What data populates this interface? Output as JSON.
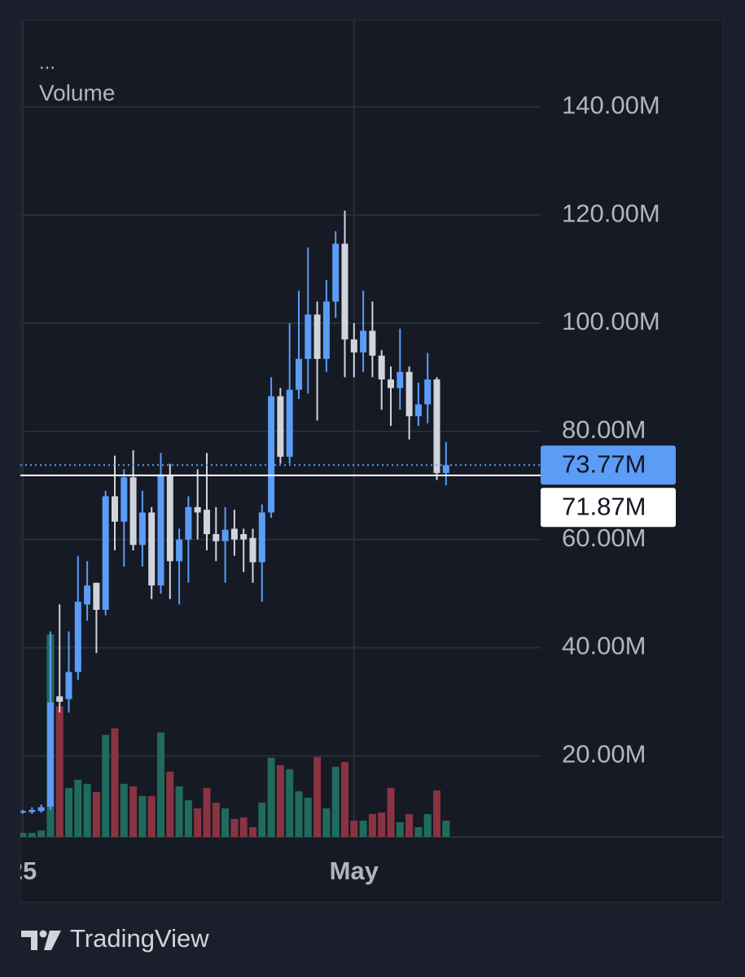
{
  "chart_data": {
    "type": "candlestick",
    "menu": "...",
    "indicator": "Volume",
    "brand": "TradingView",
    "categories": [
      "25",
      null,
      null,
      null,
      null,
      null,
      null,
      null,
      null,
      null,
      null,
      null,
      null,
      null,
      null,
      null,
      null,
      null,
      null,
      null,
      null,
      null,
      null,
      null,
      null,
      null,
      null,
      null,
      null,
      null,
      null,
      null,
      null,
      null,
      null,
      null,
      "May",
      null,
      null,
      null,
      null,
      null,
      null,
      null,
      null,
      null,
      null
    ],
    "open": [
      9.5,
      9.6,
      9.8,
      10.6,
      31,
      30.5,
      35.5,
      48,
      52,
      47,
      68,
      63.3,
      71.5,
      59,
      65,
      51.5,
      72,
      56,
      60,
      66,
      65.5,
      61,
      59.7,
      62,
      61,
      60.3,
      55.8,
      65,
      86.5,
      75.3,
      87.7,
      93.4,
      101.6,
      93.4,
      104,
      114.7,
      97,
      94.6,
      98.6,
      94,
      89.6,
      88,
      91,
      82.8,
      85,
      89.6,
      72.3
    ],
    "high": [
      10,
      10.5,
      11,
      43,
      48,
      43,
      57,
      56,
      52,
      69,
      75.5,
      73,
      76.5,
      69,
      66,
      76,
      74,
      62,
      68,
      73,
      76,
      66,
      66,
      65.5,
      62,
      62,
      66.5,
      90,
      88,
      100,
      106,
      114,
      104,
      108,
      117,
      120.8,
      100,
      106,
      104,
      95,
      92,
      99,
      92,
      89,
      94.5,
      90,
      78
    ],
    "low": [
      9.3,
      9.3,
      9.5,
      10,
      28,
      28,
      34,
      45,
      39,
      46,
      58,
      55,
      58,
      55,
      49,
      50,
      49,
      48,
      52,
      60,
      58,
      56,
      52,
      57,
      54,
      52,
      48.5,
      64,
      74,
      74,
      86,
      87,
      82,
      91,
      101,
      90,
      90,
      91,
      90,
      84,
      81,
      84,
      78.5,
      81,
      81.5,
      71,
      70
    ],
    "close": [
      9.8,
      10,
      10.5,
      29.9,
      30,
      35.5,
      48.5,
      51.5,
      47,
      68,
      63.3,
      71.5,
      59,
      65,
      51.5,
      72,
      56,
      60,
      66,
      65,
      61,
      59.7,
      61.8,
      60,
      60,
      55.8,
      65,
      86.5,
      75.3,
      87.7,
      93.4,
      101.6,
      93.4,
      104,
      114.7,
      97,
      94.6,
      98.6,
      94,
      89.6,
      88,
      91,
      82.8,
      85,
      89.6,
      72.3,
      73.77
    ],
    "volume": [
      5,
      5,
      8,
      248,
      160,
      60,
      70,
      65,
      55,
      125,
      133,
      65,
      62,
      50,
      50,
      128,
      80,
      62,
      45,
      35,
      60,
      42,
      35,
      22,
      24,
      12,
      42,
      97,
      88,
      83,
      56,
      48,
      98,
      35,
      86,
      92,
      20,
      20,
      28,
      30,
      60,
      18,
      28,
      12,
      28,
      57,
      20
    ],
    "up_color": "#5b9cf6",
    "down_color": "#d1d4dc",
    "volume_up_color": "#1f6b5e",
    "volume_down_color": "#8a3341",
    "ylim": [
      5,
      156
    ],
    "y2lim": [
      0,
      1000
    ],
    "yticks": [
      {
        "value": 20,
        "label": "20.00M"
      },
      {
        "value": 40,
        "label": "40.00M"
      },
      {
        "value": 60,
        "label": "60.00M"
      },
      {
        "value": 80,
        "label": "80.00M"
      },
      {
        "value": 100,
        "label": "100.00M"
      },
      {
        "value": 120,
        "label": "120.00M"
      },
      {
        "value": 140,
        "label": "140.00M"
      }
    ],
    "grid": true,
    "price_lines": [
      {
        "value": 73.77,
        "label": "73.77M",
        "color": "#5b9cf6",
        "style": "dotted"
      },
      {
        "value": 71.87,
        "label": "71.87M",
        "color": "#ffffff",
        "style": "solid"
      }
    ]
  }
}
